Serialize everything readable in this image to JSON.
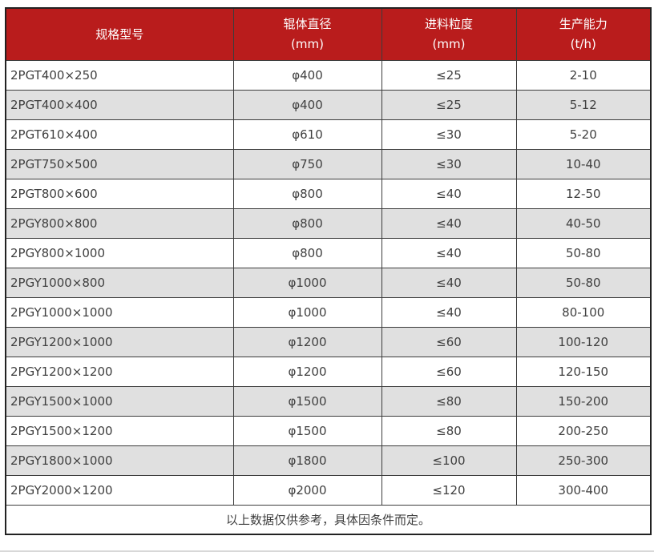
{
  "colors": {
    "header_bg": "#b91c1c",
    "header_text": "#ffffff",
    "row_bg": "#ffffff",
    "row_alt_bg": "#e0e0e0",
    "body_text": "#3f3f3f",
    "border": "#3c3c3c",
    "outer_border": "#222222",
    "divider": "#d8d8d8"
  },
  "table": {
    "columns": [
      {
        "title": "规格型号",
        "unit": ""
      },
      {
        "title": "辊体直径",
        "unit": "(mm)"
      },
      {
        "title": "进料粒度",
        "unit": "(mm)"
      },
      {
        "title": "生产能力",
        "unit": "(t/h)"
      }
    ],
    "rows": [
      [
        "2PGT400×250",
        "φ400",
        "≤25",
        "2-10"
      ],
      [
        "2PGT400×400",
        "φ400",
        "≤25",
        "5-12"
      ],
      [
        "2PGT610×400",
        "φ610",
        "≤30",
        "5-20"
      ],
      [
        "2PGT750×500",
        "φ750",
        "≤30",
        "10-40"
      ],
      [
        "2PGT800×600",
        "φ800",
        "≤40",
        "12-50"
      ],
      [
        "2PGY800×800",
        "φ800",
        "≤40",
        "40-50"
      ],
      [
        "2PGY800×1000",
        "φ800",
        "≤40",
        "50-80"
      ],
      [
        "2PGY1000×800",
        "φ1000",
        "≤40",
        "50-80"
      ],
      [
        "2PGY1000×1000",
        "φ1000",
        "≤40",
        "80-100"
      ],
      [
        "2PGY1200×1000",
        "φ1200",
        "≤60",
        "100-120"
      ],
      [
        "2PGY1200×1200",
        "φ1200",
        "≤60",
        "120-150"
      ],
      [
        "2PGY1500×1000",
        "φ1500",
        "≤80",
        "150-200"
      ],
      [
        "2PGY1500×1200",
        "φ1500",
        "≤80",
        "200-250"
      ],
      [
        "2PGY1800×1000",
        "φ1800",
        "≤100",
        "250-300"
      ],
      [
        "2PGY2000×1200",
        "φ2000",
        "≤120",
        "300-400"
      ]
    ],
    "footnote": "以上数据仅供参考，具体因条件而定。"
  }
}
